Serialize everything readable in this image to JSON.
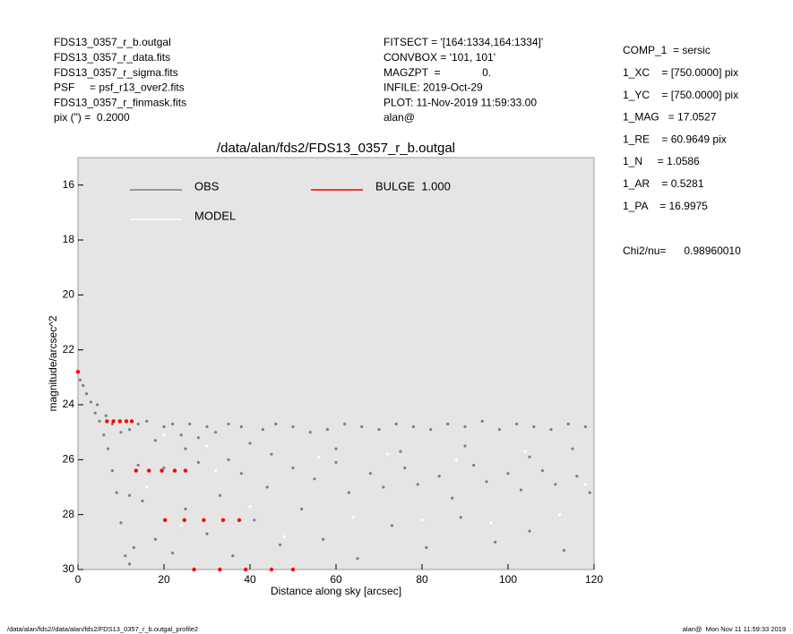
{
  "header": {
    "left": [
      "FDS13_0357_r_b.outgal",
      "FDS13_0357_r_data.fits",
      "FDS13_0357_r_sigma.fits",
      "PSF     = psf_r13_over2.fits",
      "FDS13_0357_r_finmask.fits",
      "pix (\") =  0.2000"
    ],
    "middle": [
      "FITSECT = '[164:1334,164:1334]'",
      "CONVBOX = '101, 101'",
      "MAGZPT  =              0.",
      "INFILE: 2019-Oct-29",
      "PLOT: 11-Nov-2019 11:59:33.00",
      "alan@"
    ],
    "right": [
      "COMP_1  = sersic",
      "1_XC    = [750.0000] pix",
      "1_YC    = [750.0000] pix",
      "1_MAG   = 17.0527",
      "1_RE    = 60.9649 pix",
      "1_N     = 1.0586",
      "1_AR    = 0.5281",
      "1_PA    = 16.9975"
    ],
    "chi2": "Chi2/nu=      0.98960010"
  },
  "footer": {
    "left": "/data/alan/fds2//data/alan/fds2/FDS13_0357_r_b.outgal_profile2",
    "right": "alan@  Mon Nov 11 11:59:33 2019"
  },
  "chart_data": {
    "type": "scatter",
    "title": "/data/alan/fds2/FDS13_0357_r_b.outgal",
    "xlabel": "Distance along sky [arcsec]",
    "ylabel": "magnitude/arcsec^2",
    "xlim": [
      0,
      120
    ],
    "ylim": [
      30,
      15
    ],
    "xticks": [
      0,
      20,
      40,
      60,
      80,
      100,
      120
    ],
    "yticks": [
      16,
      18,
      20,
      22,
      24,
      26,
      28,
      30
    ],
    "series": [
      {
        "name": "OBS",
        "color": "#808080",
        "x": [
          0.5,
          1.2,
          2,
          3,
          4,
          5,
          6,
          7,
          8,
          9,
          10,
          11,
          12,
          13,
          4.5,
          6.5,
          8,
          10,
          12,
          14,
          16,
          18,
          20,
          22,
          24,
          26,
          28,
          30,
          32,
          35,
          38,
          40,
          43,
          46,
          50,
          54,
          58,
          62,
          66,
          70,
          74,
          78,
          82,
          86,
          90,
          94,
          98,
          102,
          106,
          110,
          114,
          118,
          15,
          18,
          20,
          22,
          25,
          28,
          30,
          33,
          36,
          38,
          41,
          44,
          47,
          50,
          52,
          55,
          57,
          60,
          63,
          65,
          68,
          71,
          73,
          76,
          79,
          81,
          84,
          87,
          89,
          92,
          95,
          97,
          100,
          103,
          105,
          108,
          111,
          113,
          116,
          119,
          45,
          60,
          75,
          90,
          105,
          115,
          35,
          25,
          14,
          12
        ],
        "values": [
          23.1,
          23.3,
          23.6,
          23.9,
          24.3,
          24.6,
          25.1,
          25.6,
          26.4,
          27.2,
          28.3,
          29.5,
          29.8,
          29.2,
          24.0,
          24.4,
          24.7,
          25.0,
          24.9,
          24.7,
          24.6,
          25.3,
          24.8,
          24.7,
          25.1,
          24.7,
          25.2,
          24.8,
          25.0,
          24.7,
          24.8,
          25.4,
          24.9,
          24.7,
          24.8,
          25.0,
          24.9,
          24.7,
          24.8,
          24.9,
          24.7,
          24.8,
          24.9,
          24.7,
          24.8,
          24.6,
          24.9,
          24.7,
          24.8,
          24.9,
          24.7,
          24.8,
          27.5,
          28.9,
          26.3,
          29.4,
          27.8,
          26.1,
          28.7,
          27.3,
          29.5,
          26.5,
          28.2,
          27.0,
          29.1,
          26.3,
          27.8,
          26.7,
          28.9,
          26.1,
          27.2,
          29.6,
          26.5,
          27.0,
          28.4,
          26.3,
          26.9,
          29.2,
          26.6,
          27.4,
          28.1,
          26.2,
          26.8,
          29.0,
          26.5,
          27.1,
          28.6,
          26.4,
          26.9,
          29.3,
          26.6,
          27.2,
          25.8,
          25.6,
          25.7,
          25.5,
          25.9,
          25.6,
          26.0,
          25.6,
          26.2,
          27.3
        ]
      },
      {
        "name": "MODEL",
        "color": "#ffffff",
        "x": [
          16,
          24,
          32,
          40,
          48,
          56,
          64,
          72,
          80,
          88,
          96,
          104,
          112,
          118,
          20,
          30
        ],
        "values": [
          27.0,
          28.4,
          26.4,
          27.7,
          28.8,
          25.9,
          28.1,
          25.8,
          28.2,
          26.0,
          28.3,
          25.7,
          28.0,
          26.9,
          25.1,
          25.5
        ]
      },
      {
        "name": "BULGE  1.000",
        "color": "#ff0000",
        "x": [
          0,
          6.75,
          13.5,
          20.25,
          27,
          8.25,
          16.5,
          24.75,
          33,
          9.75,
          19.5,
          29.25,
          39,
          11.25,
          22.5,
          33.75,
          45,
          12.5,
          25,
          37.5,
          50
        ],
        "values": [
          22.8,
          24.6,
          26.4,
          28.2,
          30,
          24.6,
          26.4,
          28.2,
          30,
          24.6,
          26.4,
          28.2,
          30,
          24.6,
          26.4,
          28.2,
          30,
          24.6,
          26.4,
          28.2,
          30
        ]
      }
    ]
  }
}
